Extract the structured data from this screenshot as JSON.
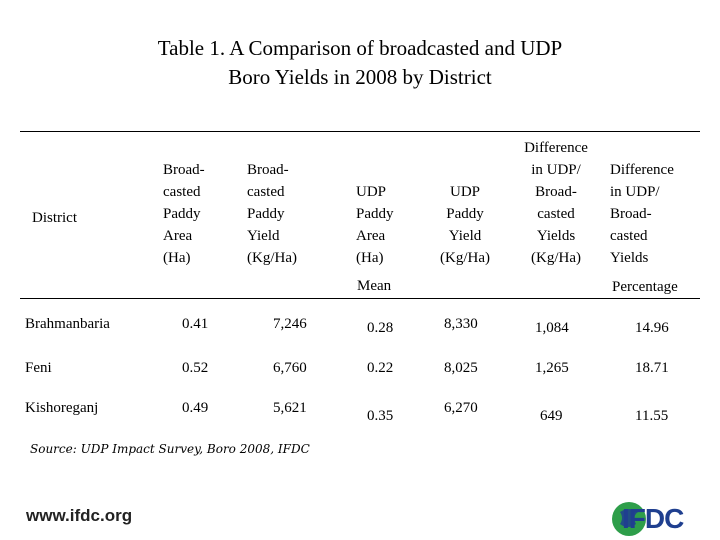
{
  "title": {
    "line1": "Table 1. A Comparison of broadcasted and UDP",
    "line2": "Boro Yields in 2008 by District"
  },
  "table": {
    "headers": {
      "district": "District",
      "bc_area": [
        "Broad-",
        "casted",
        "Paddy",
        "Area",
        "(Ha)"
      ],
      "bc_yield": [
        "Broad-",
        "casted",
        "Paddy",
        "Yield",
        "(Kg/Ha)"
      ],
      "udp_area": [
        "UDP",
        "Paddy",
        "Area",
        "(Ha)"
      ],
      "udp_yield": [
        "UDP",
        "Paddy",
        "Yield",
        "(Kg/Ha)"
      ],
      "diff": [
        "Difference",
        "in UDP/",
        "Broad-",
        "casted",
        "Yields",
        "(Kg/Ha)"
      ],
      "diff_pct": [
        "Difference",
        "in UDP/",
        "Broad-",
        "casted",
        "Yields"
      ]
    },
    "subheaders": {
      "mean": "Mean",
      "percentage": "Percentage"
    },
    "rows": [
      {
        "district": "Brahmanbaria",
        "bc_area": "0.41",
        "bc_yield": "7,246",
        "udp_area": "0.28",
        "udp_yield": "8,330",
        "diff": "1,084",
        "pct": "14.96"
      },
      {
        "district": "Feni",
        "bc_area": "0.52",
        "bc_yield": "6,760",
        "udp_area": "0.22",
        "udp_yield": "8,025",
        "diff": "1,265",
        "pct": "18.71"
      },
      {
        "district": "Kishoreganj",
        "bc_area": "0.49",
        "bc_yield": "5,621",
        "udp_area": "0.35",
        "udp_yield": "6,270",
        "diff": "649",
        "pct": "11.55"
      }
    ]
  },
  "source": "Source:  UDP Impact Survey, Boro 2008, IFDC",
  "footer": {
    "url": "www.ifdc.org",
    "logo_text": "IFDC"
  },
  "colors": {
    "logo_blue": "#1f3f8f",
    "logo_green": "#2e9e4a"
  }
}
